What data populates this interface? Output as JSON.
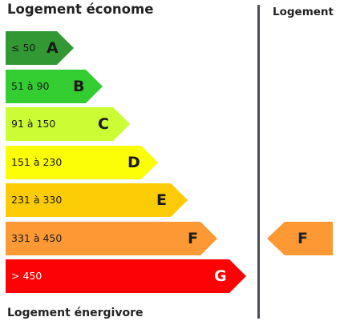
{
  "headers": {
    "top": "Logement économe",
    "bottom": "Logement énergivore",
    "right": "Logement"
  },
  "classes": [
    {
      "range": "≤ 50",
      "letter": "A",
      "color": "#319834",
      "text_color": "#1a1a1a"
    },
    {
      "range": "51 à 90",
      "letter": "B",
      "color": "#33cc31",
      "text_color": "#1a1a1a"
    },
    {
      "range": "91 à 150",
      "letter": "C",
      "color": "#cbfc34",
      "text_color": "#1a1a1a"
    },
    {
      "range": "151 à 230",
      "letter": "D",
      "color": "#fbfe06",
      "text_color": "#1a1a1a"
    },
    {
      "range": "231 à 330",
      "letter": "E",
      "color": "#fbcc05",
      "text_color": "#1a1a1a"
    },
    {
      "range": "331 à 450",
      "letter": "F",
      "color": "#fc9935",
      "text_color": "#1a1a1a"
    },
    {
      "range": "> 450",
      "letter": "G",
      "color": "#fc0205",
      "text_color": "#ffffff"
    }
  ],
  "current": {
    "letter": "F",
    "color": "#fc9935"
  }
}
